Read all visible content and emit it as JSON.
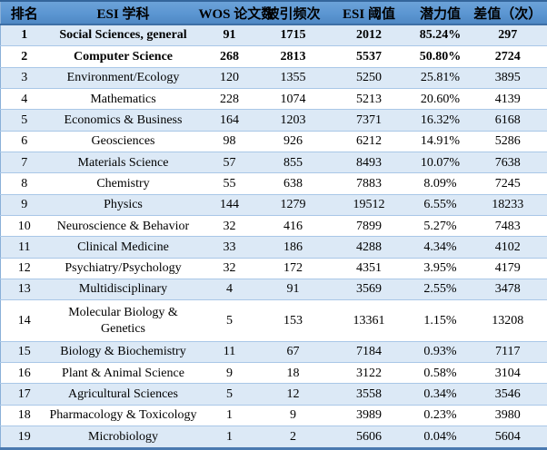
{
  "colors": {
    "header_blue": "#5B96D2",
    "header_border_dark": "#33659B",
    "band_blue": "#DCE9F6",
    "row_border": "#A9C7E7",
    "outer_bottom_border": "#4B7AB0",
    "text": "#000000"
  },
  "table": {
    "columns": [
      {
        "key": "rank",
        "label": "排名"
      },
      {
        "key": "subject",
        "label": "ESI 学科"
      },
      {
        "key": "wos_papers",
        "label": "WOS 论文数"
      },
      {
        "key": "citations",
        "label": "被引频次"
      },
      {
        "key": "esi_threshold",
        "label": "ESI 阈值"
      },
      {
        "key": "potential",
        "label": "潜力值"
      },
      {
        "key": "difference",
        "label": "差值（次）"
      }
    ],
    "rows": [
      {
        "rank": "1",
        "subject": "Social Sciences, general",
        "wos_papers": "91",
        "citations": "1715",
        "esi_threshold": "2012",
        "potential": "85.24%",
        "difference": "297",
        "bold": true
      },
      {
        "rank": "2",
        "subject": "Computer Science",
        "wos_papers": "268",
        "citations": "2813",
        "esi_threshold": "5537",
        "potential": "50.80%",
        "difference": "2724",
        "bold": true
      },
      {
        "rank": "3",
        "subject": "Environment/Ecology",
        "wos_papers": "120",
        "citations": "1355",
        "esi_threshold": "5250",
        "potential": "25.81%",
        "difference": "3895"
      },
      {
        "rank": "4",
        "subject": "Mathematics",
        "wos_papers": "228",
        "citations": "1074",
        "esi_threshold": "5213",
        "potential": "20.60%",
        "difference": "4139"
      },
      {
        "rank": "5",
        "subject": "Economics & Business",
        "wos_papers": "164",
        "citations": "1203",
        "esi_threshold": "7371",
        "potential": "16.32%",
        "difference": "6168"
      },
      {
        "rank": "6",
        "subject": "Geosciences",
        "wos_papers": "98",
        "citations": "926",
        "esi_threshold": "6212",
        "potential": "14.91%",
        "difference": "5286"
      },
      {
        "rank": "7",
        "subject": "Materials Science",
        "wos_papers": "57",
        "citations": "855",
        "esi_threshold": "8493",
        "potential": "10.07%",
        "difference": "7638"
      },
      {
        "rank": "8",
        "subject": "Chemistry",
        "wos_papers": "55",
        "citations": "638",
        "esi_threshold": "7883",
        "potential": "8.09%",
        "difference": "7245"
      },
      {
        "rank": "9",
        "subject": "Physics",
        "wos_papers": "144",
        "citations": "1279",
        "esi_threshold": "19512",
        "potential": "6.55%",
        "difference": "18233"
      },
      {
        "rank": "10",
        "subject": "Neuroscience & Behavior",
        "wos_papers": "32",
        "citations": "416",
        "esi_threshold": "7899",
        "potential": "5.27%",
        "difference": "7483"
      },
      {
        "rank": "11",
        "subject": "Clinical Medicine",
        "wos_papers": "33",
        "citations": "186",
        "esi_threshold": "4288",
        "potential": "4.34%",
        "difference": "4102"
      },
      {
        "rank": "12",
        "subject": "Psychiatry/Psychology",
        "wos_papers": "32",
        "citations": "172",
        "esi_threshold": "4351",
        "potential": "3.95%",
        "difference": "4179"
      },
      {
        "rank": "13",
        "subject": "Multidisciplinary",
        "wos_papers": "4",
        "citations": "91",
        "esi_threshold": "3569",
        "potential": "2.55%",
        "difference": "3478"
      },
      {
        "rank": "14",
        "subject": "Molecular Biology & Genetics",
        "wos_papers": "5",
        "citations": "153",
        "esi_threshold": "13361",
        "potential": "1.15%",
        "difference": "13208",
        "wrap": true
      },
      {
        "rank": "15",
        "subject": "Biology & Biochemistry",
        "wos_papers": "11",
        "citations": "67",
        "esi_threshold": "7184",
        "potential": "0.93%",
        "difference": "7117"
      },
      {
        "rank": "16",
        "subject": "Plant & Animal Science",
        "wos_papers": "9",
        "citations": "18",
        "esi_threshold": "3122",
        "potential": "0.58%",
        "difference": "3104"
      },
      {
        "rank": "17",
        "subject": "Agricultural Sciences",
        "wos_papers": "5",
        "citations": "12",
        "esi_threshold": "3558",
        "potential": "0.34%",
        "difference": "3546"
      },
      {
        "rank": "18",
        "subject": "Pharmacology & Toxicology",
        "wos_papers": "1",
        "citations": "9",
        "esi_threshold": "3989",
        "potential": "0.23%",
        "difference": "3980"
      },
      {
        "rank": "19",
        "subject": "Microbiology",
        "wos_papers": "1",
        "citations": "2",
        "esi_threshold": "5606",
        "potential": "0.04%",
        "difference": "5604"
      }
    ]
  }
}
